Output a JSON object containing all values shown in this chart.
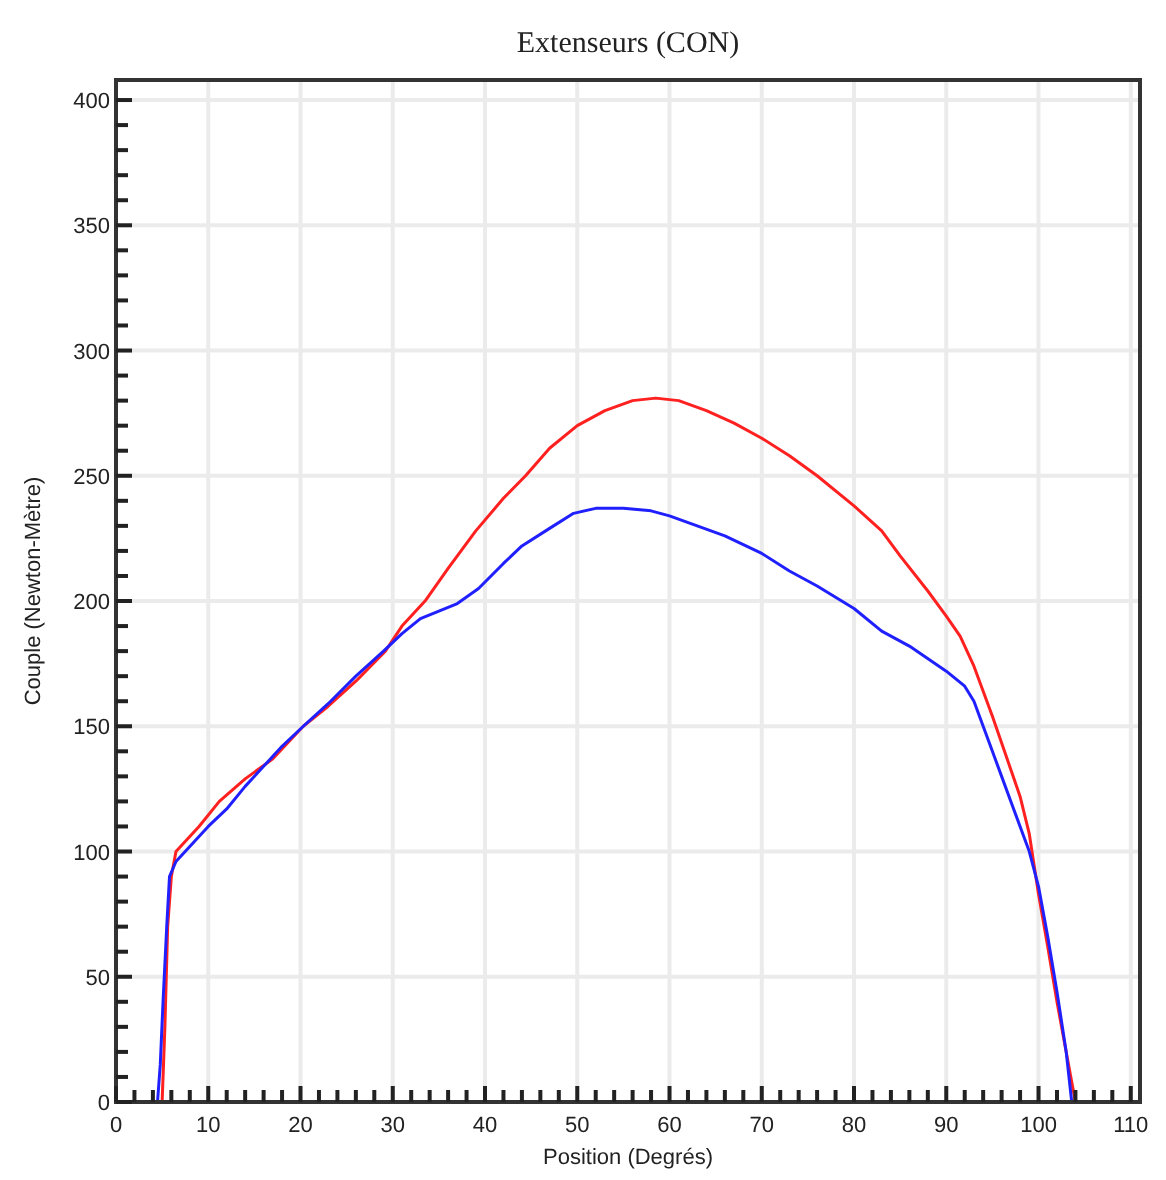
{
  "chart_data": {
    "type": "line",
    "title": "Extenseurs (CON)",
    "xlabel": "Position (Degrés)",
    "ylabel": "Couple (Newton-Mètre)",
    "xlim": [
      0,
      111
    ],
    "ylim": [
      0,
      408
    ],
    "xticks": [
      0,
      {
        "value": 2,
        "label": null
      },
      {
        "value": 4,
        "label": null
      },
      {
        "value": 6,
        "label": null
      },
      {
        "value": 8,
        "label": null
      },
      10,
      {
        "value": 12,
        "label": null
      },
      {
        "value": 14,
        "label": null
      },
      {
        "value": 16,
        "label": null
      },
      {
        "value": 18,
        "label": null
      },
      20,
      {
        "value": 22,
        "label": null
      },
      {
        "value": 24,
        "label": null
      },
      {
        "value": 26,
        "label": null
      },
      {
        "value": 28,
        "label": null
      },
      30,
      {
        "value": 32,
        "label": null
      },
      {
        "value": 34,
        "label": null
      },
      {
        "value": 36,
        "label": null
      },
      {
        "value": 38,
        "label": null
      },
      40,
      {
        "value": 42,
        "label": null
      },
      {
        "value": 44,
        "label": null
      },
      {
        "value": 46,
        "label": null
      },
      {
        "value": 48,
        "label": null
      },
      50,
      {
        "value": 52,
        "label": null
      },
      {
        "value": 54,
        "label": null
      },
      {
        "value": 56,
        "label": null
      },
      {
        "value": 58,
        "label": null
      },
      60,
      {
        "value": 62,
        "label": null
      },
      {
        "value": 64,
        "label": null
      },
      {
        "value": 66,
        "label": null
      },
      {
        "value": 68,
        "label": null
      },
      70,
      {
        "value": 72,
        "label": null
      },
      {
        "value": 74,
        "label": null
      },
      {
        "value": 76,
        "label": null
      },
      {
        "value": 78,
        "label": null
      },
      80,
      {
        "value": 82,
        "label": null
      },
      {
        "value": 84,
        "label": null
      },
      {
        "value": 86,
        "label": null
      },
      {
        "value": 88,
        "label": null
      },
      90,
      {
        "value": 92,
        "label": null
      },
      {
        "value": 94,
        "label": null
      },
      {
        "value": 96,
        "label": null
      },
      {
        "value": 98,
        "label": null
      },
      100,
      {
        "value": 102,
        "label": null
      },
      {
        "value": 104,
        "label": null
      },
      {
        "value": 106,
        "label": null
      },
      {
        "value": 108,
        "label": null
      },
      110
    ],
    "yticks": [
      0,
      {
        "value": 10,
        "label": null
      },
      {
        "value": 20,
        "label": null
      },
      {
        "value": 30,
        "label": null
      },
      {
        "value": 40,
        "label": null
      },
      50,
      {
        "value": 60,
        "label": null
      },
      {
        "value": 70,
        "label": null
      },
      {
        "value": 80,
        "label": null
      },
      {
        "value": 90,
        "label": null
      },
      100,
      {
        "value": 110,
        "label": null
      },
      {
        "value": 120,
        "label": null
      },
      {
        "value": 130,
        "label": null
      },
      {
        "value": 140,
        "label": null
      },
      150,
      {
        "value": 160,
        "label": null
      },
      {
        "value": 170,
        "label": null
      },
      {
        "value": 180,
        "label": null
      },
      {
        "value": 190,
        "label": null
      },
      200,
      {
        "value": 210,
        "label": null
      },
      {
        "value": 220,
        "label": null
      },
      {
        "value": 230,
        "label": null
      },
      {
        "value": 240,
        "label": null
      },
      250,
      {
        "value": 260,
        "label": null
      },
      {
        "value": 270,
        "label": null
      },
      {
        "value": 280,
        "label": null
      },
      {
        "value": 290,
        "label": null
      },
      300,
      {
        "value": 310,
        "label": null
      },
      {
        "value": 320,
        "label": null
      },
      {
        "value": 330,
        "label": null
      },
      {
        "value": 340,
        "label": null
      },
      350,
      {
        "value": 360,
        "label": null
      },
      {
        "value": 370,
        "label": null
      },
      {
        "value": 380,
        "label": null
      },
      {
        "value": 390,
        "label": null
      },
      400
    ],
    "grid": true,
    "series": [
      {
        "color": "#ff2020",
        "x": [
          5,
          5.3,
          5.6,
          6,
          6.5,
          8,
          9,
          11.2,
          14,
          17,
          20.3,
          23,
          26,
          29.2,
          31,
          33.5,
          36,
          39,
          42,
          44.4,
          47,
          50,
          53,
          56,
          58.5,
          61,
          64,
          67,
          70,
          73,
          76,
          80,
          83,
          85,
          88,
          90,
          91.5,
          93,
          94,
          95,
          96.5,
          98,
          99,
          100,
          101,
          102,
          103,
          103.6,
          104
        ],
        "values": [
          0,
          30,
          70,
          90,
          100,
          106,
          110,
          120,
          129,
          137,
          150,
          158,
          168,
          180,
          190,
          200,
          213,
          228,
          241,
          250,
          261,
          270,
          276,
          280,
          281,
          280,
          276,
          271,
          265,
          258,
          250,
          238,
          228,
          218,
          204,
          194,
          186,
          174,
          164,
          154,
          138,
          122,
          107,
          83,
          62,
          40,
          20,
          8,
          0
        ]
      },
      {
        "color": "#2020ff",
        "x": [
          4.5,
          4.8,
          5.1,
          5.5,
          5.8,
          6.5,
          8,
          10,
          12,
          14,
          16,
          18,
          20.3,
          23,
          26,
          29,
          31,
          33,
          35,
          37,
          39.3,
          42,
          44,
          47,
          49.6,
          52,
          55,
          58,
          60,
          63,
          66,
          70,
          73,
          76,
          80,
          83,
          86,
          90,
          92,
          93,
          94,
          95,
          96,
          97,
          98,
          99,
          100,
          101,
          102,
          103,
          103.6
        ],
        "values": [
          0,
          15,
          40,
          70,
          90,
          96,
          102,
          110,
          117,
          126,
          134,
          142,
          150,
          159,
          170,
          180,
          187,
          193,
          196,
          199,
          205,
          215,
          222,
          229,
          235,
          237,
          237,
          236,
          234,
          230,
          226,
          219,
          212,
          206,
          197,
          188,
          182,
          172,
          166,
          160,
          150,
          140,
          130,
          120,
          110,
          100,
          86,
          66,
          44,
          20,
          0
        ]
      }
    ]
  }
}
